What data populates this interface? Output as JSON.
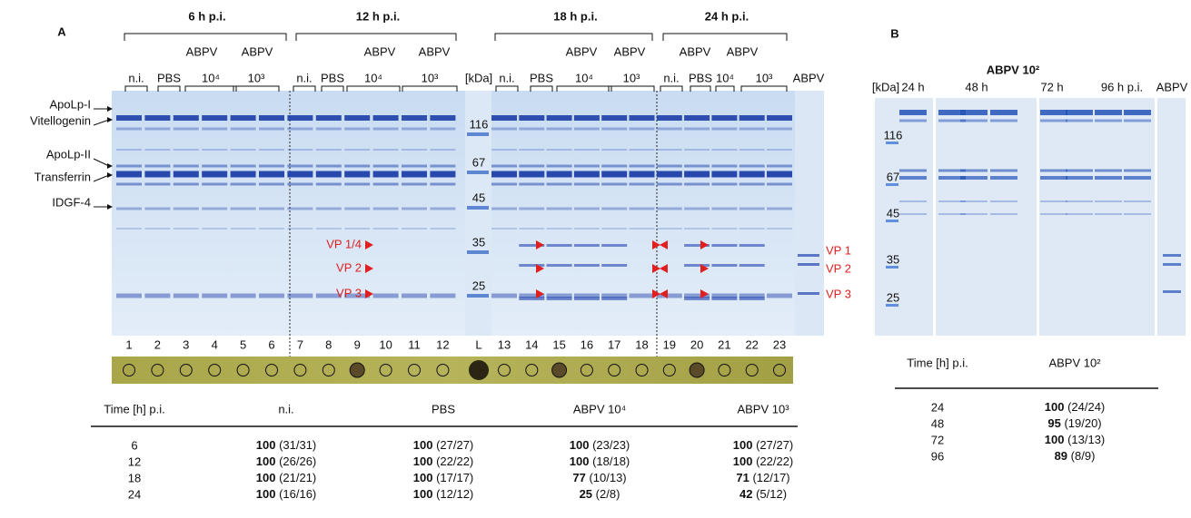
{
  "panel_a": {
    "label": "A",
    "time_groups": [
      {
        "title": "6 h p.i.",
        "treatment_labels": [
          "ABPV",
          "ABPV"
        ],
        "lane_groups": [
          "n.i.",
          "PBS",
          "10⁴",
          "10³"
        ]
      },
      {
        "title": "12 h p.i.",
        "treatment_labels": [
          "ABPV",
          "ABPV"
        ],
        "lane_groups": [
          "n.i.",
          "PBS",
          "10⁴",
          "10³"
        ]
      },
      {
        "title": "18 h p.i.",
        "treatment_labels": [
          "ABPV",
          "ABPV"
        ],
        "lane_groups": [
          "n.i.",
          "PBS",
          "10⁴",
          "10³"
        ]
      },
      {
        "title": "24 h p.i.",
        "treatment_labels": [
          "ABPV",
          "ABPV"
        ],
        "lane_groups": [
          "n.i.",
          "PBS",
          "10⁴",
          "10³"
        ]
      }
    ],
    "marker_header": "[kDa]",
    "markers": [
      "116",
      "67",
      "45",
      "35",
      "25"
    ],
    "proteins": [
      "ApoLp-I",
      "Vitellogenin",
      "ApoLp-II",
      "Transferrin",
      "IDGF-4"
    ],
    "vp_labels_left": [
      "VP 1/4",
      "VP 2",
      "VP 3"
    ],
    "standard_lane": "ABPV",
    "vp_labels_right": [
      "VP 1",
      "VP 2",
      "VP 3"
    ],
    "lanes": [
      "1",
      "2",
      "3",
      "4",
      "5",
      "6",
      "7",
      "8",
      "9",
      "10",
      "11",
      "12",
      "L",
      "13",
      "14",
      "15",
      "16",
      "17",
      "18",
      "19",
      "20",
      "21",
      "22",
      "23"
    ],
    "table": {
      "header": [
        "Time [h] p.i.",
        "n.i.",
        "PBS",
        "ABPV 10⁴",
        "ABPV 10³"
      ],
      "rows": [
        [
          "6",
          {
            "bold": "100",
            "detail": "(31/31)"
          },
          {
            "bold": "100",
            "detail": "(27/27)"
          },
          {
            "bold": "100",
            "detail": "(23/23)"
          },
          {
            "bold": "100",
            "detail": "(27/27)"
          }
        ],
        [
          "12",
          {
            "bold": "100",
            "detail": "(26/26)"
          },
          {
            "bold": "100",
            "detail": "(22/22)"
          },
          {
            "bold": "100",
            "detail": "(18/18)"
          },
          {
            "bold": "100",
            "detail": "(22/22)"
          }
        ],
        [
          "18",
          {
            "bold": "100",
            "detail": "(21/21)"
          },
          {
            "bold": "100",
            "detail": "(17/17)"
          },
          {
            "bold": "77",
            "detail": "(10/13)"
          },
          {
            "bold": "71",
            "detail": "(12/17)"
          }
        ],
        [
          "24",
          {
            "bold": "100",
            "detail": "(16/16)"
          },
          {
            "bold": "100",
            "detail": "(12/12)"
          },
          {
            "bold": "25",
            "detail": "(2/8)"
          },
          {
            "bold": "42",
            "detail": "(5/12)"
          }
        ]
      ]
    }
  },
  "panel_b": {
    "label": "B",
    "title": "ABPV 10²",
    "marker_header": "[kDa]",
    "lanes": [
      "24 h",
      "48 h",
      "72 h",
      "96 h p.i.",
      "ABPV"
    ],
    "markers": [
      "116",
      "67",
      "45",
      "35",
      "25"
    ],
    "table": {
      "header": [
        "Time [h] p.i.",
        "ABPV 10²"
      ],
      "rows": [
        [
          "24",
          {
            "bold": "100",
            "detail": "(24/24)"
          }
        ],
        [
          "48",
          {
            "bold": "95",
            "detail": "(19/20)"
          }
        ],
        [
          "72",
          {
            "bold": "100",
            "detail": "(13/13)"
          }
        ],
        [
          "96",
          {
            "bold": "89",
            "detail": "(8/9)"
          }
        ]
      ]
    }
  }
}
